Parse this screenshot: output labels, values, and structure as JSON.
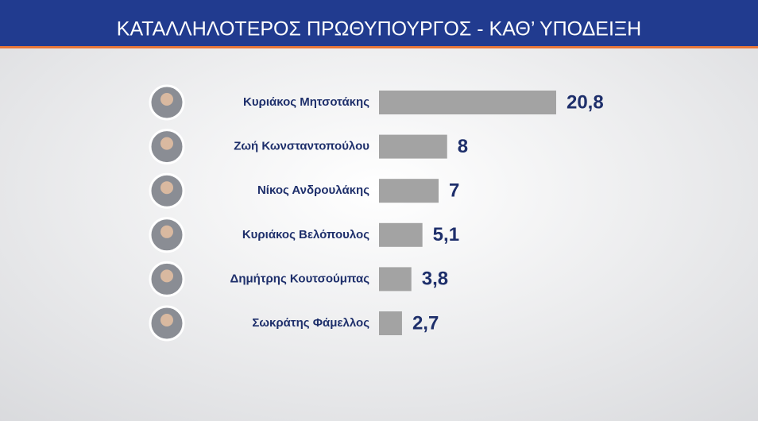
{
  "chart_data": {
    "type": "bar",
    "orientation": "horizontal",
    "title": "ΚΑΤΑΛΛΗΛΟΤΕΡΟΣ ΠΡΩΘΥΠΟΥΡΓΟΣ - ΚΑΘ’ ΥΠΟΔΕΙΞΗ",
    "categories": [
      "Κυριάκος Μητσοτάκης",
      "Ζωή Κωνσταντοπούλου",
      "Νίκος Ανδρουλάκης",
      "Κυριάκος Βελόπουλος",
      "Δημήτρης Κουτσούμπας",
      "Σωκράτης Φάμελλος"
    ],
    "values": [
      20.8,
      8,
      7,
      5.1,
      3.8,
      2.7
    ],
    "value_labels": [
      "20,8",
      "8",
      "7",
      "5,1",
      "3,8",
      "2,7"
    ],
    "color": "#a3a3a3"
  }
}
